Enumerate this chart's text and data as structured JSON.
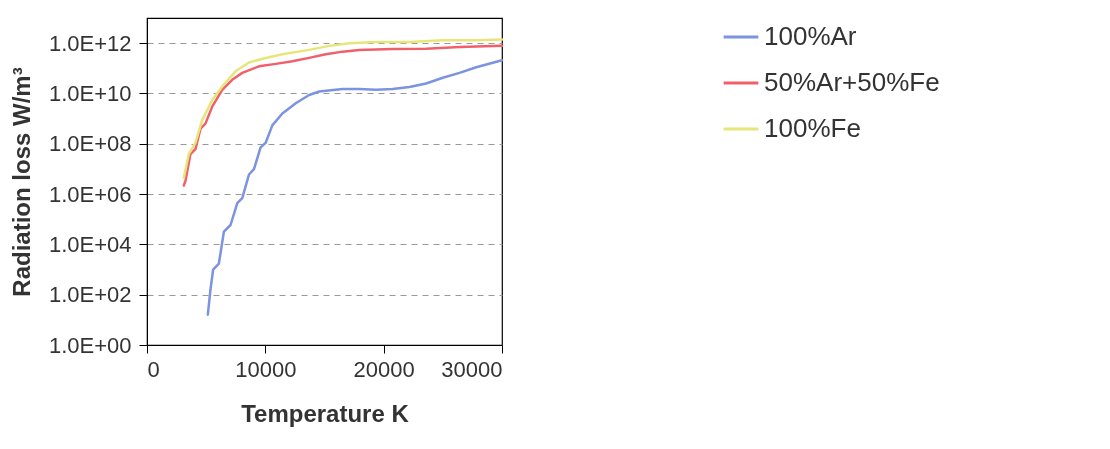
{
  "chart_data": {
    "type": "line",
    "xlabel": "Temperature    K",
    "ylabel": "Radiation loss    W/m³",
    "log": true,
    "grid": "y",
    "legend": "right",
    "marker": "none",
    "line_style": "solid",
    "xlim": [
      0,
      30000
    ],
    "xticks": [
      0,
      10000,
      20000,
      30000
    ],
    "ylim": [
      1,
      10000000000000.0
    ],
    "yticks": [
      {
        "value": 1,
        "label": "1.0E+00"
      },
      {
        "value": 100,
        "label": "1.0E+02"
      },
      {
        "value": 10000,
        "label": "1.0E+04"
      },
      {
        "value": 1000000,
        "label": "1.0E+06"
      },
      {
        "value": 100000000,
        "label": "1.0E+08"
      },
      {
        "value": 10000000000,
        "label": "1.0E+10"
      },
      {
        "value": 1000000000000,
        "label": "1.0E+12"
      }
    ],
    "series": [
      {
        "name": "100%Ar",
        "color": "#7b93e0",
        "x": [
          5140,
          5370,
          5590,
          6070,
          6500,
          7060,
          7630,
          8050,
          8620,
          9040,
          9600,
          10030,
          10590,
          11440,
          12570,
          13700,
          14550,
          16530,
          17940,
          19350,
          20760,
          22180,
          23590,
          25000,
          26410,
          27820,
          30000
        ],
        "values": [
          16,
          170,
          1000,
          1700,
          32000.0,
          59000.0,
          440000.0,
          690000.0,
          6000000.0,
          9800000.0,
          72000000.0,
          110000000.0,
          540000000.0,
          1600000000.0,
          4100000000.0,
          8700000000.0,
          12000000000.0,
          15000000000.0,
          15000000000.0,
          14000000000.0,
          15000000000.0,
          18000000000.0,
          25000000000.0,
          42000000000.0,
          66000000000.0,
          110000000000.0,
          210000000000.0
        ]
      },
      {
        "name": "50%Ar+50%Fe",
        "color": "#f0606a",
        "x": [
          3110,
          3250,
          3670,
          4100,
          4520,
          4940,
          5510,
          6360,
          7200,
          8050,
          9460,
          10880,
          12290,
          13700,
          15110,
          16530,
          17940,
          20760,
          23590,
          26410,
          30000
        ],
        "values": [
          2200000.0,
          3300000.0,
          39000000.0,
          62000000.0,
          400000000.0,
          630000000.0,
          3000000000.0,
          14000000000.0,
          35000000000.0,
          66000000000.0,
          120000000000.0,
          150000000000.0,
          190000000000.0,
          260000000000.0,
          360000000000.0,
          460000000000.0,
          540000000000.0,
          580000000000.0,
          600000000000.0,
          710000000000.0,
          780000000000.0
        ]
      },
      {
        "name": "100%Fe",
        "color": "#e6e67a",
        "x": [
          3110,
          3530,
          4100,
          4660,
          5510,
          6360,
          7490,
          8620,
          9750,
          11440,
          13700,
          15400,
          17090,
          19350,
          22180,
          25000,
          27820,
          30000
        ],
        "values": [
          4500000.0,
          39000000.0,
          110000000.0,
          870000000.0,
          5500000000.0,
          19000000000.0,
          76000000000.0,
          170000000000.0,
          240000000000.0,
          360000000000.0,
          540000000000.0,
          780000000000.0,
          1000000000000.0,
          1100000000000.0,
          1100000000000.0,
          1300000000000.0,
          1300000000000.0,
          1400000000000.0
        ]
      }
    ]
  }
}
